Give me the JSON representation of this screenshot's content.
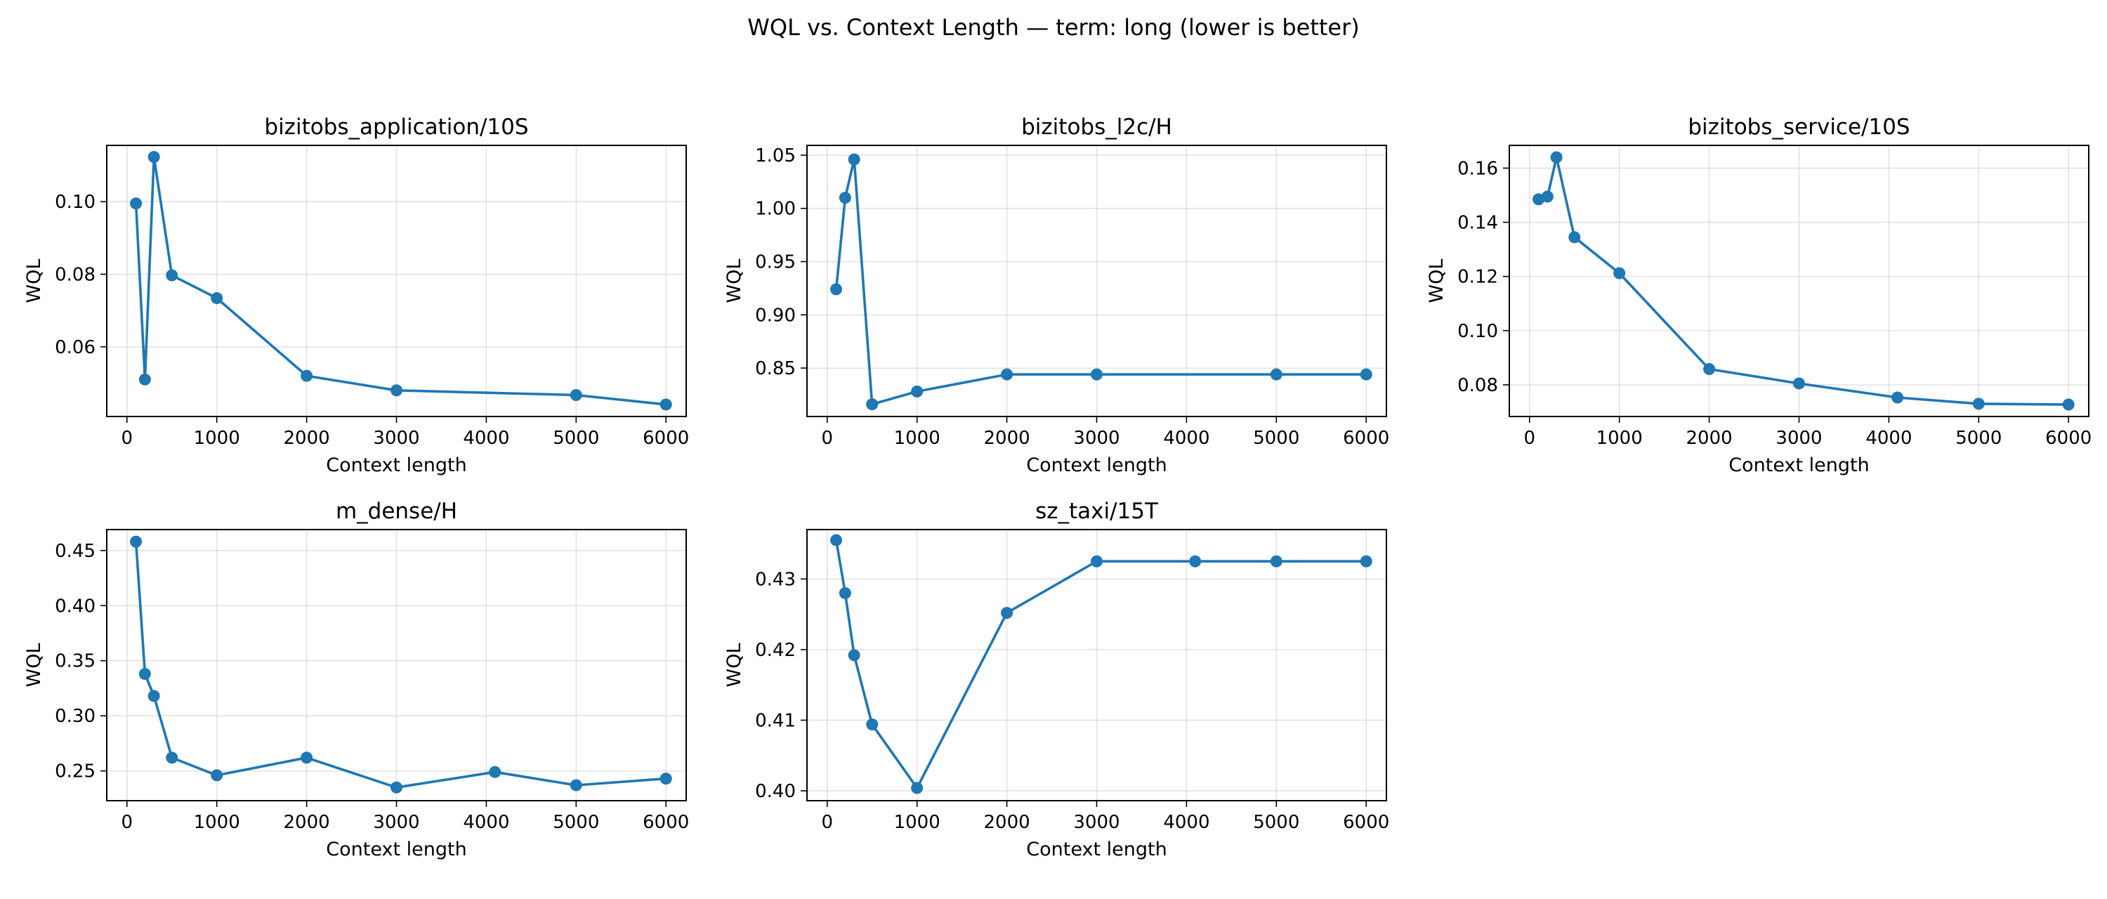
{
  "figure": {
    "title": "WQL vs. Context Length — term: long (lower is better)",
    "line_color": "#1f77b4"
  },
  "chart_data": [
    {
      "type": "line",
      "title": "bizitobs_application/10S",
      "xlabel": "Context length",
      "ylabel": "WQL",
      "grid": true,
      "xlim": [
        -225,
        6225
      ],
      "ylim": [
        0.0408,
        0.1155
      ],
      "xticks": [
        0,
        1000,
        2000,
        3000,
        4000,
        5000,
        6000
      ],
      "xtick_labels": [
        "0",
        "1000",
        "2000",
        "3000",
        "4000",
        "5000",
        "6000"
      ],
      "yticks": [
        0.06,
        0.08,
        0.1
      ],
      "ytick_labels": [
        "0.06",
        "0.08",
        "0.10"
      ],
      "series": [
        {
          "x": [
            100,
            200,
            300,
            500,
            1000,
            2000,
            3000,
            5000,
            6000
          ],
          "values": [
            0.0995,
            0.051,
            0.1123,
            0.0797,
            0.0734,
            0.052,
            0.048,
            0.0467,
            0.0441
          ]
        }
      ]
    },
    {
      "type": "line",
      "title": "bizitobs_l2c/H",
      "xlabel": "Context length",
      "ylabel": "WQL",
      "grid": true,
      "xlim": [
        -225,
        6225
      ],
      "ylim": [
        0.8045,
        1.0592
      ],
      "xticks": [
        0,
        1000,
        2000,
        3000,
        4000,
        5000,
        6000
      ],
      "xtick_labels": [
        "0",
        "1000",
        "2000",
        "3000",
        "4000",
        "5000",
        "6000"
      ],
      "yticks": [
        0.85,
        0.9,
        0.95,
        1.0,
        1.05
      ],
      "ytick_labels": [
        "0.85",
        "0.90",
        "0.95",
        "1.00",
        "1.05"
      ],
      "series": [
        {
          "x": [
            100,
            200,
            300,
            500,
            1000,
            2000,
            3000,
            5000,
            6000
          ],
          "values": [
            0.924,
            1.01,
            1.046,
            0.816,
            0.828,
            0.844,
            0.844,
            0.844,
            0.844
          ]
        }
      ]
    },
    {
      "type": "line",
      "title": "bizitobs_service/10S",
      "xlabel": "Context length",
      "ylabel": "WQL",
      "grid": true,
      "xlim": [
        -225,
        6225
      ],
      "ylim": [
        0.0683,
        0.1684
      ],
      "xticks": [
        0,
        1000,
        2000,
        3000,
        4000,
        5000,
        6000
      ],
      "xtick_labels": [
        "0",
        "1000",
        "2000",
        "3000",
        "4000",
        "5000",
        "6000"
      ],
      "yticks": [
        0.08,
        0.1,
        0.12,
        0.14,
        0.16
      ],
      "ytick_labels": [
        "0.08",
        "0.10",
        "0.12",
        "0.14",
        "0.16"
      ],
      "series": [
        {
          "x": [
            100,
            200,
            300,
            500,
            1000,
            2000,
            3000,
            4096,
            5000,
            6000
          ],
          "values": [
            0.1485,
            0.1495,
            0.164,
            0.1345,
            0.1212,
            0.0858,
            0.0805,
            0.0753,
            0.073,
            0.0727
          ]
        }
      ]
    },
    {
      "type": "line",
      "title": "m_dense/H",
      "xlabel": "Context length",
      "ylabel": "WQL",
      "grid": true,
      "xlim": [
        -225,
        6225
      ],
      "ylim": [
        0.223,
        0.469
      ],
      "xticks": [
        0,
        1000,
        2000,
        3000,
        4000,
        5000,
        6000
      ],
      "xtick_labels": [
        "0",
        "1000",
        "2000",
        "3000",
        "4000",
        "5000",
        "6000"
      ],
      "yticks": [
        0.25,
        0.3,
        0.35,
        0.4,
        0.45
      ],
      "ytick_labels": [
        "0.25",
        "0.30",
        "0.35",
        "0.40",
        "0.45"
      ],
      "series": [
        {
          "x": [
            100,
            200,
            300,
            500,
            1000,
            2000,
            3000,
            4096,
            5000,
            6000
          ],
          "values": [
            0.458,
            0.338,
            0.318,
            0.262,
            0.246,
            0.262,
            0.235,
            0.249,
            0.237,
            0.243
          ]
        }
      ]
    },
    {
      "type": "line",
      "title": "sz_taxi/15T",
      "xlabel": "Context length",
      "ylabel": "WQL",
      "grid": true,
      "xlim": [
        -225,
        6225
      ],
      "ylim": [
        0.3986,
        0.437
      ],
      "xticks": [
        0,
        1000,
        2000,
        3000,
        4000,
        5000,
        6000
      ],
      "xtick_labels": [
        "0",
        "1000",
        "2000",
        "3000",
        "4000",
        "5000",
        "6000"
      ],
      "yticks": [
        0.4,
        0.41,
        0.42,
        0.43
      ],
      "ytick_labels": [
        "0.40",
        "0.41",
        "0.42",
        "0.43"
      ],
      "series": [
        {
          "x": [
            100,
            200,
            300,
            500,
            1000,
            2000,
            3000,
            4096,
            5000,
            6000
          ],
          "values": [
            0.4355,
            0.428,
            0.4192,
            0.4094,
            0.4004,
            0.4252,
            0.4325,
            0.4325,
            0.4325,
            0.4325
          ]
        }
      ]
    }
  ]
}
